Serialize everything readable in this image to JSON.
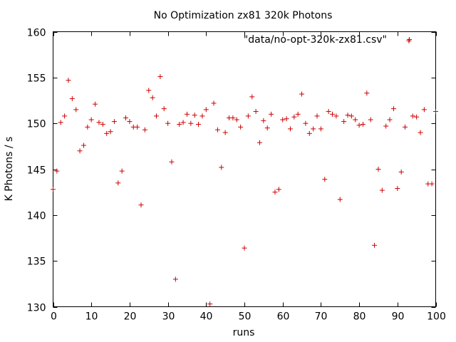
{
  "chart_data": {
    "type": "scatter",
    "title": "No Optimization zx81 320k Photons",
    "xlabel": "runs",
    "ylabel": "K Photons / s",
    "xlim": [
      0,
      100
    ],
    "ylim": [
      130,
      160
    ],
    "xticks": [
      0,
      10,
      20,
      30,
      40,
      50,
      60,
      70,
      80,
      90,
      100
    ],
    "yticks": [
      130,
      135,
      140,
      145,
      150,
      155,
      160
    ],
    "grid": false,
    "legend_position": "top-right",
    "marker": "plus",
    "color": "#cc0000",
    "series": [
      {
        "name": "\"data/no-opt-320k-zx81.csv\"",
        "points": [
          [
            0,
            142.8
          ],
          [
            1,
            144.8
          ],
          [
            2,
            150.1
          ],
          [
            3,
            150.8
          ],
          [
            4,
            154.7
          ],
          [
            5,
            152.7
          ],
          [
            6,
            151.5
          ],
          [
            7,
            147.0
          ],
          [
            8,
            147.6
          ],
          [
            9,
            149.6
          ],
          [
            10,
            150.4
          ],
          [
            11,
            152.1
          ],
          [
            12,
            150.1
          ],
          [
            13,
            149.9
          ],
          [
            14,
            148.9
          ],
          [
            15,
            149.1
          ],
          [
            16,
            150.2
          ],
          [
            17,
            143.5
          ],
          [
            18,
            144.8
          ],
          [
            19,
            150.6
          ],
          [
            20,
            150.2
          ],
          [
            21,
            149.6
          ],
          [
            22,
            149.6
          ],
          [
            23,
            141.1
          ],
          [
            24,
            149.3
          ],
          [
            25,
            153.6
          ],
          [
            26,
            152.8
          ],
          [
            27,
            150.8
          ],
          [
            28,
            155.1
          ],
          [
            29,
            151.6
          ],
          [
            30,
            150.0
          ],
          [
            31,
            145.8
          ],
          [
            32,
            133.0
          ],
          [
            33,
            149.9
          ],
          [
            34,
            150.1
          ],
          [
            35,
            151.0
          ],
          [
            36,
            150.0
          ],
          [
            37,
            150.9
          ],
          [
            38,
            149.9
          ],
          [
            39,
            150.8
          ],
          [
            40,
            151.5
          ],
          [
            41,
            130.3
          ],
          [
            42,
            152.2
          ],
          [
            43,
            149.3
          ],
          [
            44,
            145.2
          ],
          [
            45,
            149.0
          ],
          [
            46,
            150.6
          ],
          [
            47,
            150.6
          ],
          [
            48,
            150.4
          ],
          [
            49,
            149.6
          ],
          [
            50,
            136.4
          ],
          [
            51,
            150.8
          ],
          [
            52,
            152.9
          ],
          [
            53,
            151.3
          ],
          [
            54,
            147.9
          ],
          [
            55,
            150.3
          ],
          [
            56,
            149.5
          ],
          [
            57,
            151.0
          ],
          [
            58,
            142.5
          ],
          [
            59,
            142.8
          ],
          [
            60,
            150.4
          ],
          [
            61,
            150.5
          ],
          [
            62,
            149.4
          ],
          [
            63,
            150.7
          ],
          [
            64,
            151.0
          ],
          [
            65,
            153.2
          ],
          [
            66,
            150.0
          ],
          [
            67,
            148.9
          ],
          [
            68,
            149.4
          ],
          [
            69,
            150.8
          ],
          [
            70,
            149.4
          ],
          [
            71,
            143.9
          ],
          [
            72,
            151.3
          ],
          [
            73,
            151.0
          ],
          [
            74,
            150.8
          ],
          [
            75,
            141.7
          ],
          [
            76,
            150.2
          ],
          [
            77,
            150.9
          ],
          [
            78,
            150.8
          ],
          [
            79,
            150.4
          ],
          [
            80,
            149.8
          ],
          [
            81,
            149.9
          ],
          [
            82,
            153.3
          ],
          [
            83,
            150.4
          ],
          [
            84,
            136.7
          ],
          [
            85,
            145.0
          ],
          [
            86,
            142.7
          ],
          [
            87,
            149.7
          ],
          [
            88,
            150.4
          ],
          [
            89,
            151.6
          ],
          [
            90,
            142.9
          ],
          [
            91,
            144.7
          ],
          [
            92,
            149.6
          ],
          [
            93,
            159.0
          ],
          [
            94,
            150.8
          ],
          [
            95,
            150.7
          ],
          [
            96,
            149.0
          ],
          [
            97,
            151.5
          ],
          [
            98,
            143.4
          ],
          [
            99,
            143.4
          ],
          [
            100,
            151.3
          ]
        ]
      }
    ]
  }
}
